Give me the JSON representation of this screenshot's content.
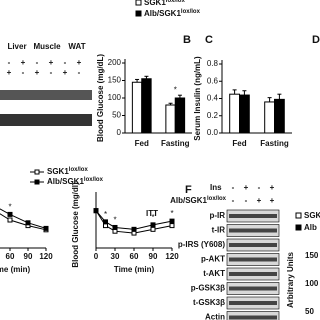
{
  "legend_top": [
    {
      "label": "SGK1",
      "sup": "lox/lox",
      "fill": "#ffffff"
    },
    {
      "label": "Alb/SGK1",
      "sup": "lox/lox",
      "fill": "#000000"
    }
  ],
  "panel_labels": [
    "B",
    "C",
    "D",
    "F"
  ],
  "gel": {
    "tissues": [
      "Liver",
      "Muscle",
      "WAT"
    ],
    "rows": [
      [
        "-",
        "+",
        "-",
        "+",
        "-",
        "+"
      ],
      [
        "+",
        "-",
        "+",
        "-",
        "+",
        "-"
      ]
    ]
  },
  "chart_data": [
    {
      "type": "bar",
      "y_label": "Blood Glucose (mg/dL)",
      "categories": [
        "Fed",
        "Fasting"
      ],
      "ylim": [
        0,
        200
      ],
      "yticks": [
        0,
        50,
        100,
        150,
        200
      ],
      "series": [
        {
          "name": "SGK1",
          "name_sup": "lox/lox",
          "color": "#ffffff",
          "values": [
            145,
            80
          ],
          "errors": [
            8,
            5
          ]
        },
        {
          "name": "Alb/SGK1",
          "name_sup": "lox/lox",
          "color": "#000000",
          "values": [
            155,
            100
          ],
          "errors": [
            7,
            8
          ]
        }
      ],
      "annotations": [
        {
          "text": "*",
          "category": "Fasting"
        }
      ]
    },
    {
      "type": "bar",
      "y_label": "Serum Insulin (ng/mL)",
      "categories": [
        "Fed",
        "Fasting"
      ],
      "ylim": [
        0,
        0.8
      ],
      "yticks": [
        {
          "value": 0,
          "label": "0.0"
        },
        0.2,
        0.4,
        0.6,
        0.8
      ],
      "series": [
        {
          "name": "SGK1",
          "name_sup": "lox/lox",
          "color": "#ffffff",
          "values": [
            0.45,
            0.36
          ],
          "errors": [
            0.05,
            0.05
          ]
        },
        {
          "name": "Alb/SGK1",
          "name_sup": "lox/lox",
          "color": "#000000",
          "values": [
            0.44,
            0.39
          ],
          "errors": [
            0.05,
            0.06
          ]
        }
      ],
      "annotations": []
    },
    {
      "type": "line",
      "x_label": "Time (min)",
      "x": [
        0,
        15,
        30,
        60,
        90,
        120
      ],
      "xlim": [
        0,
        120
      ],
      "xticks": [
        60,
        90,
        120
      ],
      "ylim": [
        0,
        500
      ],
      "series": [
        {
          "name": "SGK1",
          "name_sup": "lox/lox",
          "color": "#ffffff",
          "values": [
            120,
            300,
            280,
            200,
            160,
            130
          ]
        },
        {
          "name": "Alb/SGK1",
          "name_sup": "lox/lox",
          "color": "#000000",
          "values": [
            120,
            330,
            310,
            240,
            180,
            140
          ]
        }
      ],
      "annotations": [
        {
          "text": "*",
          "x": 60
        }
      ]
    },
    {
      "type": "line",
      "title": "ITT",
      "y_label": "Blood Glucose (mg/dl)",
      "x_label": "Time (min)",
      "x": [
        0,
        15,
        30,
        60,
        90,
        120
      ],
      "xlim": [
        0,
        120
      ],
      "xticks": [
        0,
        30,
        60,
        90,
        120
      ],
      "ylim": [
        0,
        150
      ],
      "series": [
        {
          "name": "SGK1",
          "name_sup": "lox/lox",
          "color": "#ffffff",
          "values": [
            100,
            60,
            45,
            40,
            50,
            60
          ]
        },
        {
          "name": "Alb/SGK1",
          "name_sup": "lox/lox",
          "color": "#000000",
          "values": [
            100,
            70,
            55,
            50,
            62,
            72
          ]
        }
      ],
      "annotations": [
        {
          "text": "*",
          "x": 15
        },
        {
          "text": "*",
          "x": 30
        },
        {
          "text": "*",
          "x": 90
        },
        {
          "text": "*",
          "x": 120
        }
      ]
    }
  ],
  "blot": {
    "ins_label": "Ins",
    "geno_label": "Alb/SGK1",
    "geno_sup": "lox/lox",
    "ins": [
      "-",
      "+",
      "-",
      "+"
    ],
    "geno": [
      "-",
      "-",
      "+",
      "+"
    ],
    "rows": [
      "p-IR",
      "t-IR",
      "p-IRS (Y608)",
      "p-AKT",
      "t-AKT",
      "p-GSK3β",
      "t-GSK3β",
      "Actin"
    ]
  },
  "right_panel": {
    "legend": [
      "SGK",
      "Alb"
    ],
    "y_label": "Arbitrary Units",
    "yticks": [
      150,
      100,
      50
    ]
  }
}
